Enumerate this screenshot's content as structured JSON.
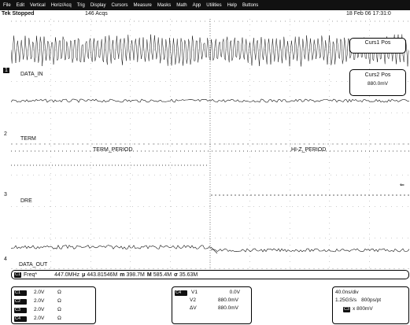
{
  "menu": [
    "File",
    "Edit",
    "Vertical",
    "Horiz/Acq",
    "Trig",
    "Display",
    "Cursors",
    "Measure",
    "Masks",
    "Math",
    "App",
    "Utilities",
    "Help",
    "Buttons"
  ],
  "status": {
    "state": "Tek  Stopped",
    "acqs": "146 Acqs",
    "datetime": "18 Feb 06  17:31:0"
  },
  "cursor_readout": {
    "curs1_label": "Curs1 Pos",
    "curs2_label": "Curs2 Pos",
    "curs2_value": "880.0mV"
  },
  "traces": {
    "ch1": "DATA_IN",
    "ch2": "TERM",
    "ch3": "DRE",
    "ch4": "DATA_OUT"
  },
  "ch_markers": {
    "m1": "1",
    "m2": "2",
    "m3": "3",
    "m4": "4"
  },
  "annotations": {
    "term_period": "TERM_PERIOD",
    "hiz_period": "HI-Z_PERIOD"
  },
  "measurement": {
    "badge": "C1",
    "label": "Freq*",
    "value": "447.0MHz",
    "mean": "443.81546M",
    "min": "398.7M",
    "max": "585.4M",
    "sd": "35.63M",
    "mean_sym": "μ",
    "min_sym": "m",
    "max_sym": "M",
    "sd_sym": "σ"
  },
  "channels": [
    {
      "badge": "C1",
      "scale": "2.0V",
      "imp": "Ω"
    },
    {
      "badge": "C2",
      "scale": "2.0V",
      "imp": "Ω"
    },
    {
      "badge": "C3",
      "scale": "2.0V",
      "imp": "Ω"
    },
    {
      "badge": "C4",
      "scale": "2.0V",
      "imp": "Ω"
    }
  ],
  "cursors": {
    "badge": "C4",
    "v1_label": "V1",
    "v1": "0.0V",
    "v2_label": "V2",
    "v2": "880.0mV",
    "dv_label": "ΔV",
    "dv": "880.0mV"
  },
  "timebase": {
    "div": "40.0ns/div",
    "rate": "1.25GS/s",
    "res": "800ps/pt",
    "trig_badge": "C3",
    "trig_level": "x 800mV"
  }
}
